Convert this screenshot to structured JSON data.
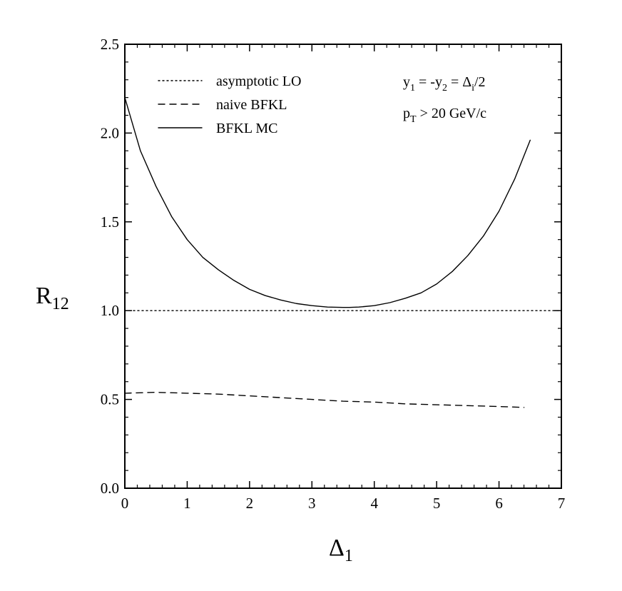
{
  "chart_data": {
    "type": "line",
    "title": "",
    "xlabel": "Δ",
    "xlabel_sub": "1",
    "ylabel": "R",
    "ylabel_sub": "12",
    "xlim": [
      0,
      7
    ],
    "ylim": [
      0,
      2.5
    ],
    "x_ticks": [
      0,
      1,
      2,
      3,
      4,
      5,
      6,
      7
    ],
    "x_tick_labels": [
      "0",
      "1",
      "2",
      "3",
      "4",
      "5",
      "6",
      "7"
    ],
    "y_ticks": [
      0,
      0.5,
      1.0,
      1.5,
      2.0,
      2.5
    ],
    "y_tick_labels": [
      "0.0",
      "0.5",
      "1.0",
      "1.5",
      "2.0",
      "2.5"
    ],
    "grid": false,
    "legend_position": "top-left",
    "annotation": {
      "line1": {
        "y1": "y",
        "s1": "1",
        "eq": " = -y",
        "s2": "2",
        "eq2": " = Δ",
        "s3": "i",
        "tail": "/2"
      },
      "line2": {
        "p": "p",
        "s": "T",
        "tail": " > 20 GeV/c"
      }
    },
    "series": [
      {
        "name": "asymptotic LO",
        "style": "dotted",
        "x": [
          0,
          7
        ],
        "y": [
          1.0,
          1.0
        ]
      },
      {
        "name": "naive BFKL",
        "style": "dashed",
        "x": [
          0,
          0.5,
          1.0,
          1.5,
          2.0,
          2.5,
          3.0,
          3.5,
          4.0,
          4.5,
          5.0,
          5.5,
          6.0,
          6.4
        ],
        "y": [
          0.535,
          0.54,
          0.535,
          0.53,
          0.52,
          0.51,
          0.5,
          0.49,
          0.485,
          0.475,
          0.47,
          0.465,
          0.46,
          0.455
        ]
      },
      {
        "name": "BFKL MC",
        "style": "solid",
        "x": [
          0,
          0.25,
          0.5,
          0.75,
          1.0,
          1.25,
          1.5,
          1.75,
          2.0,
          2.25,
          2.5,
          2.75,
          3.0,
          3.25,
          3.5,
          3.6,
          3.75,
          4.0,
          4.25,
          4.5,
          4.75,
          5.0,
          5.25,
          5.5,
          5.75,
          6.0,
          6.25,
          6.5
        ],
        "y": [
          2.2,
          1.9,
          1.7,
          1.53,
          1.4,
          1.3,
          1.23,
          1.17,
          1.12,
          1.085,
          1.06,
          1.04,
          1.028,
          1.02,
          1.018,
          1.018,
          1.02,
          1.028,
          1.045,
          1.07,
          1.1,
          1.15,
          1.22,
          1.31,
          1.42,
          1.56,
          1.74,
          1.96
        ]
      }
    ]
  }
}
